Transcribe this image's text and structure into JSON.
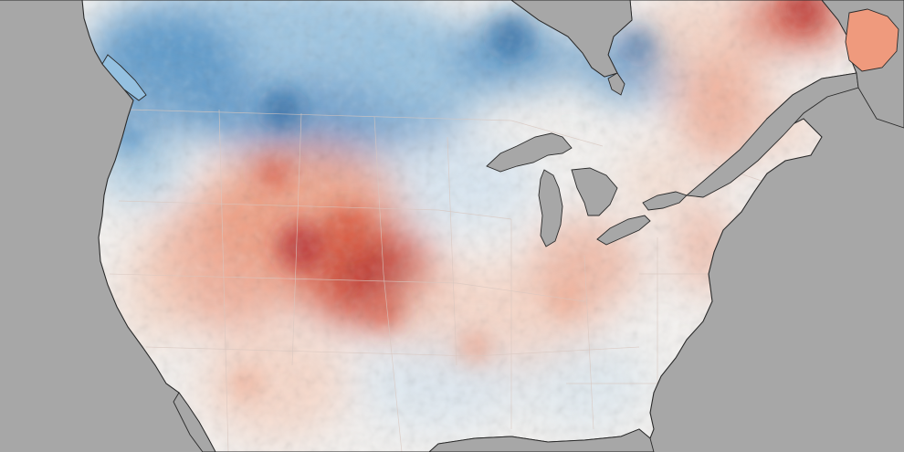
{
  "map": {
    "type": "temperature-anomaly",
    "colors": {
      "background_gray": "#a7a7a7",
      "land_neutral": "#f4f2f0",
      "cold_light": "#d6e6f2",
      "cold_medium": "#94c0e0",
      "cold_strong": "#3f86c2",
      "cold_deep": "#1f5f9e",
      "warm_light": "#f7d2c0",
      "warm_medium": "#ef9a7d",
      "warm_strong": "#d9533a",
      "warm_deep": "#b5282a",
      "coast_line": "#2a2a2a",
      "border_line": "#d8c7bf"
    },
    "labels": []
  }
}
